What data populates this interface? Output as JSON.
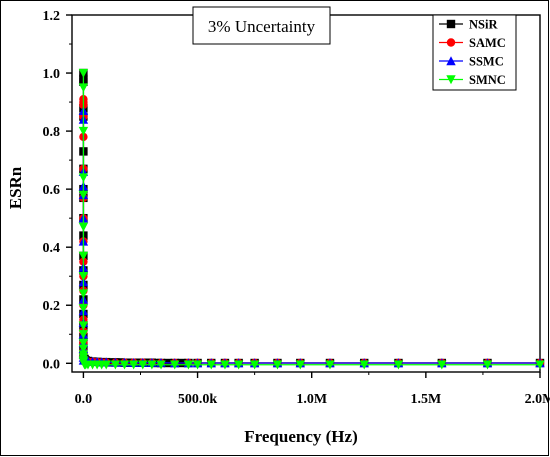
{
  "chart_data": {
    "type": "scatter",
    "xlabel": "Frequency (Hz)",
    "ylabel": "ESRn",
    "annotation": "3% Uncertainty",
    "xlim": [
      -50000,
      2000000
    ],
    "ylim": [
      -0.03,
      1.2
    ],
    "x_ticks": [
      0,
      500000,
      1000000,
      1500000,
      2000000
    ],
    "x_tick_labels": [
      "0.0",
      "500.0k",
      "1.0M",
      "1.5M",
      "2.0M"
    ],
    "y_ticks": [
      0.0,
      0.2,
      0.4,
      0.6,
      0.8,
      1.0,
      1.2
    ],
    "y_tick_labels": [
      "0.0",
      "0.2",
      "0.4",
      "0.6",
      "0.8",
      "1.0",
      "1.2"
    ],
    "grid": false,
    "legend_position": "top-right",
    "series": [
      {
        "name": "NSiR",
        "color": "#000000",
        "marker": "square",
        "x": [
          0,
          0,
          0,
          0,
          0,
          0,
          0,
          0,
          0,
          0,
          0,
          0,
          0,
          0,
          0,
          0,
          0,
          0,
          0,
          0,
          5000,
          10000,
          20000,
          40000,
          60000,
          80000,
          100000,
          120000,
          140000,
          160000,
          180000,
          200000,
          220000,
          240000,
          260000,
          280000,
          300000,
          320000,
          340000,
          370000,
          400000,
          430000,
          460000,
          500000,
          560000,
          620000,
          680000,
          750000,
          850000,
          950000,
          1080000,
          1230000,
          1380000,
          1570000,
          1770000,
          2000000
        ],
        "y": [
          1.0,
          0.98,
          0.97,
          0.88,
          0.85,
          0.73,
          0.67,
          0.6,
          0.57,
          0.5,
          0.44,
          0.37,
          0.32,
          0.27,
          0.22,
          0.17,
          0.13,
          0.09,
          0.06,
          0.03,
          0.015,
          0.01,
          0.008,
          0.006,
          0.005,
          0.004,
          0.004,
          0.003,
          0.003,
          0.003,
          0.002,
          0.002,
          0.002,
          0.002,
          0.002,
          0.002,
          0.002,
          0.001,
          0.001,
          0.001,
          0.001,
          0.001,
          0.001,
          0.001,
          0.001,
          0.001,
          0.001,
          0.001,
          0.001,
          0.001,
          0.001,
          0.001,
          0.001,
          0.001,
          0.001,
          0.001
        ]
      },
      {
        "name": "SAMC",
        "color": "#ff0000",
        "marker": "circle",
        "x": [
          0,
          0,
          0,
          0,
          0,
          0,
          0,
          0,
          0,
          0,
          0,
          0,
          0,
          0,
          0,
          0,
          0,
          0,
          5000,
          10000,
          20000,
          40000,
          60000,
          80000,
          100000,
          140000,
          180000,
          220000,
          260000,
          300000,
          340000,
          400000,
          460000,
          500000,
          560000,
          620000,
          680000,
          750000,
          850000,
          950000,
          1080000,
          1230000,
          1380000,
          1570000,
          1770000,
          2000000
        ],
        "y": [
          0.9,
          0.91,
          0.89,
          0.85,
          0.78,
          0.67,
          0.57,
          0.5,
          0.42,
          0.35,
          0.3,
          0.25,
          0.2,
          0.15,
          0.11,
          0.07,
          0.04,
          0.02,
          0.012,
          0.008,
          0.006,
          0.005,
          0.004,
          0.003,
          0.003,
          0.002,
          0.002,
          0.002,
          0.002,
          0.001,
          0.001,
          0.001,
          0.001,
          0.001,
          0.001,
          0.001,
          0.001,
          0.001,
          0.001,
          0.001,
          0.001,
          0.001,
          0.001,
          0.001,
          0.001,
          0.001
        ]
      },
      {
        "name": "SSMC",
        "color": "#0000ff",
        "marker": "triangle-up",
        "x": [
          0,
          0,
          0,
          0,
          0,
          0,
          0,
          0,
          0,
          0,
          0,
          0,
          0,
          0,
          0,
          0,
          0,
          0,
          5000,
          10000,
          20000,
          40000,
          60000,
          80000,
          100000,
          140000,
          180000,
          220000,
          260000,
          300000,
          340000,
          400000,
          460000,
          500000,
          560000,
          620000,
          680000,
          750000,
          850000,
          950000,
          1080000,
          1230000,
          1380000,
          1570000,
          1770000,
          2000000
        ],
        "y": [
          0.87,
          0.84,
          0.66,
          0.61,
          0.58,
          0.5,
          0.42,
          0.33,
          0.28,
          0.22,
          0.18,
          0.14,
          0.1,
          0.07,
          0.05,
          0.03,
          0.02,
          0.01,
          0.015,
          0.01,
          0.008,
          0.006,
          0.005,
          0.004,
          0.004,
          0.003,
          0.003,
          0.002,
          0.002,
          0.002,
          0.002,
          0.001,
          0.001,
          0.001,
          0.001,
          0.001,
          0.001,
          0.001,
          0.001,
          0.001,
          0.001,
          0.001,
          0.001,
          0.001,
          0.001,
          0.001
        ]
      },
      {
        "name": "SMNC",
        "color": "#00ff00",
        "marker": "triangle-down",
        "x": [
          0,
          0,
          0,
          0,
          0,
          0,
          0,
          0,
          0,
          0,
          0,
          0,
          0,
          0,
          0,
          0,
          0,
          0,
          5000,
          10000,
          20000,
          40000,
          60000,
          80000,
          100000,
          140000,
          180000,
          220000,
          260000,
          300000,
          340000,
          400000,
          460000,
          500000,
          560000,
          620000,
          680000,
          750000,
          850000,
          950000,
          1080000,
          1230000,
          1380000,
          1570000,
          1770000,
          2000000
        ],
        "y": [
          1.0,
          0.95,
          0.8,
          0.64,
          0.58,
          0.47,
          0.37,
          0.3,
          0.24,
          0.19,
          0.13,
          0.1,
          0.07,
          0.05,
          0.03,
          0.02,
          0.01,
          0.005,
          -0.005,
          -0.005,
          -0.005,
          -0.005,
          -0.005,
          -0.005,
          -0.005,
          -0.005,
          -0.005,
          -0.005,
          -0.005,
          -0.005,
          -0.005,
          -0.005,
          -0.005,
          -0.005,
          -0.005,
          -0.005,
          -0.005,
          -0.005,
          -0.005,
          -0.005,
          -0.005,
          -0.005,
          -0.005,
          -0.005,
          -0.005,
          -0.005
        ]
      }
    ]
  }
}
